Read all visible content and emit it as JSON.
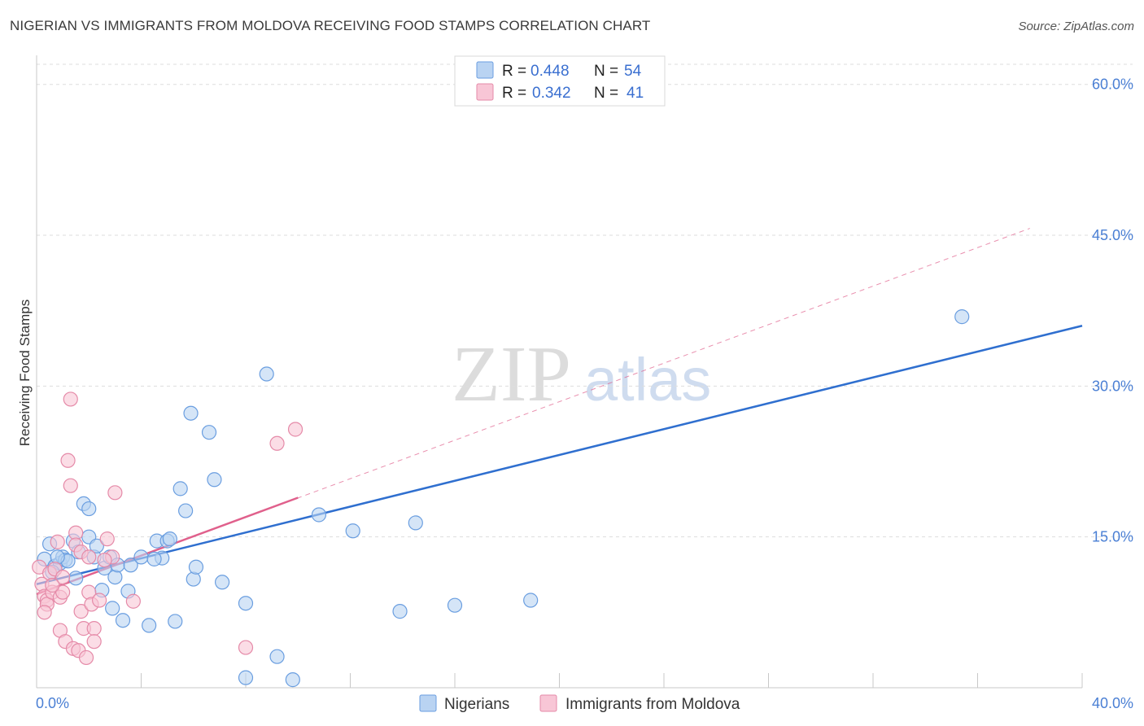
{
  "title": "NIGERIAN VS IMMIGRANTS FROM MOLDOVA RECEIVING FOOD STAMPS CORRELATION CHART",
  "source": "Source: ZipAtlas.com",
  "watermark": {
    "zip": "ZIP",
    "atlas": "atlas"
  },
  "legend": {
    "rows": [
      {
        "r_label": "R =",
        "r_value": "0.448",
        "n_label": "N =",
        "n_value": "54"
      },
      {
        "r_label": "R =",
        "r_value": "0.342",
        "n_label": "N =",
        "n_value": "41"
      }
    ]
  },
  "bottom_legend": {
    "items": [
      "Nigerians",
      "Immigrants from Moldova"
    ]
  },
  "colors": {
    "nigerians_fill": "#b9d3f2",
    "nigerians_stroke": "#6a9ee0",
    "nigerians_line": "#2f6fcf",
    "moldova_fill": "#f8c6d6",
    "moldova_stroke": "#e58aa8",
    "moldova_line": "#e0608c",
    "axis_text": "#4a7fd4",
    "grid": "#dddddd"
  },
  "chart_data": {
    "type": "scatter",
    "title": "NIGERIAN VS IMMIGRANTS FROM MOLDOVA RECEIVING FOOD STAMPS CORRELATION CHART",
    "xlabel": "",
    "ylabel": "Receiving Food Stamps",
    "xlim": [
      0,
      40
    ],
    "ylim": [
      0,
      62
    ],
    "x_tick_labels": [
      "0.0%",
      "40.0%"
    ],
    "y_ticks": [
      15,
      30,
      45,
      60
    ],
    "y_tick_labels": [
      "15.0%",
      "30.0%",
      "45.0%",
      "60.0%"
    ],
    "grid": "horizontal dashed",
    "legend_position": "top-center",
    "series": [
      {
        "name": "Nigerians",
        "r": 0.448,
        "n": 54,
        "trend": {
          "x": [
            0,
            40
          ],
          "y": [
            10.3,
            36.0
          ]
        },
        "points": [
          [
            0.3,
            12.8
          ],
          [
            0.5,
            14.3
          ],
          [
            0.7,
            12.1
          ],
          [
            0.9,
            12.4
          ],
          [
            1.0,
            13.0
          ],
          [
            1.1,
            12.7
          ],
          [
            1.2,
            12.6
          ],
          [
            1.4,
            14.6
          ],
          [
            1.5,
            10.9
          ],
          [
            1.6,
            13.5
          ],
          [
            2.0,
            15.0
          ],
          [
            2.2,
            13.0
          ],
          [
            2.3,
            14.1
          ],
          [
            2.5,
            9.7
          ],
          [
            2.6,
            11.9
          ],
          [
            2.8,
            13.0
          ],
          [
            2.9,
            7.9
          ],
          [
            3.0,
            11.0
          ],
          [
            3.1,
            12.2
          ],
          [
            3.3,
            6.7
          ],
          [
            3.5,
            9.6
          ],
          [
            3.6,
            12.2
          ],
          [
            4.0,
            13.0
          ],
          [
            4.3,
            6.2
          ],
          [
            4.6,
            14.6
          ],
          [
            4.8,
            12.9
          ],
          [
            5.0,
            14.6
          ],
          [
            5.1,
            14.8
          ],
          [
            5.3,
            6.6
          ],
          [
            5.5,
            19.8
          ],
          [
            5.7,
            17.6
          ],
          [
            5.9,
            27.3
          ],
          [
            6.0,
            10.8
          ],
          [
            6.6,
            25.4
          ],
          [
            6.8,
            20.7
          ],
          [
            7.1,
            10.5
          ],
          [
            8.0,
            8.4
          ],
          [
            8.8,
            31.2
          ],
          [
            9.2,
            3.1
          ],
          [
            9.8,
            0.8
          ],
          [
            10.8,
            17.2
          ],
          [
            12.1,
            15.6
          ],
          [
            13.9,
            7.6
          ],
          [
            14.5,
            16.4
          ],
          [
            16.0,
            8.2
          ],
          [
            18.9,
            8.7
          ],
          [
            35.4,
            36.9
          ],
          [
            8.0,
            1.0
          ],
          [
            1.8,
            18.3
          ],
          [
            2.0,
            17.8
          ],
          [
            6.1,
            12.0
          ],
          [
            0.8,
            13.0
          ],
          [
            4.5,
            12.8
          ],
          [
            0.6,
            11.5
          ]
        ]
      },
      {
        "name": "Immigrants from Moldova",
        "r": 0.342,
        "n": 41,
        "trend": {
          "x": [
            0,
            10
          ],
          "y": [
            9.3,
            18.9
          ]
        },
        "trend_ext": {
          "x": [
            0,
            40
          ],
          "y": [
            9.3,
            47.6
          ]
        },
        "points": [
          [
            0.1,
            12.0
          ],
          [
            0.2,
            10.3
          ],
          [
            0.3,
            9.1
          ],
          [
            0.4,
            8.7
          ],
          [
            0.4,
            8.3
          ],
          [
            0.5,
            11.4
          ],
          [
            0.6,
            9.5
          ],
          [
            0.7,
            11.8
          ],
          [
            0.8,
            14.5
          ],
          [
            0.9,
            9.0
          ],
          [
            0.9,
            5.7
          ],
          [
            1.0,
            9.5
          ],
          [
            1.1,
            4.6
          ],
          [
            1.2,
            22.6
          ],
          [
            1.3,
            20.1
          ],
          [
            1.3,
            28.7
          ],
          [
            1.4,
            3.9
          ],
          [
            1.5,
            15.4
          ],
          [
            1.5,
            14.2
          ],
          [
            1.6,
            3.7
          ],
          [
            1.7,
            13.5
          ],
          [
            1.7,
            7.6
          ],
          [
            1.8,
            5.9
          ],
          [
            1.9,
            3.0
          ],
          [
            2.0,
            13.0
          ],
          [
            2.0,
            9.5
          ],
          [
            2.1,
            8.3
          ],
          [
            2.2,
            5.9
          ],
          [
            2.2,
            4.6
          ],
          [
            2.4,
            8.7
          ],
          [
            2.7,
            14.8
          ],
          [
            2.9,
            13.0
          ],
          [
            3.0,
            19.4
          ],
          [
            3.7,
            8.6
          ],
          [
            8.0,
            4.0
          ],
          [
            9.2,
            24.3
          ],
          [
            9.9,
            25.7
          ],
          [
            1.0,
            11.0
          ],
          [
            0.3,
            7.5
          ],
          [
            2.6,
            12.7
          ],
          [
            0.6,
            10.2
          ]
        ]
      }
    ]
  }
}
